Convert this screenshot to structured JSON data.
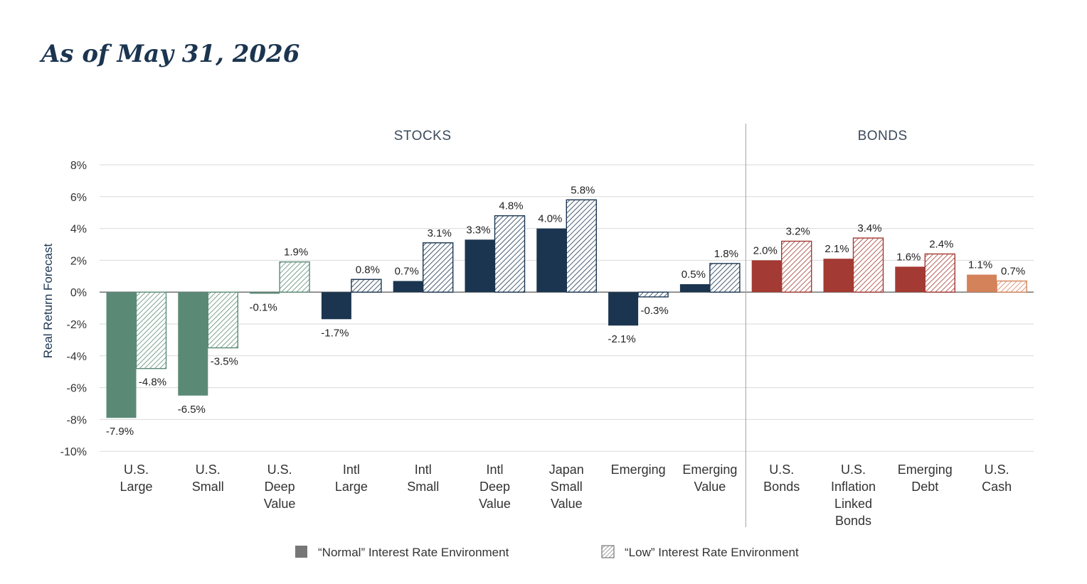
{
  "title": "As of May 31, 2026",
  "chart_data": {
    "type": "bar",
    "ylabel": "Real Return Forecast",
    "ylim": [
      -10,
      8
    ],
    "yticks": [
      8,
      6,
      4,
      2,
      0,
      -2,
      -4,
      -6,
      -8,
      -10
    ],
    "ytick_labels": [
      "8%",
      "6%",
      "4%",
      "2%",
      "0%",
      "-2%",
      "-4%",
      "-6%",
      "-8%",
      "-10%"
    ],
    "grid": true,
    "sections": [
      {
        "name": "STOCKS",
        "categories": [
          0,
          1,
          2,
          3,
          4,
          5,
          6,
          7,
          8
        ]
      },
      {
        "name": "BONDS",
        "categories": [
          9,
          10,
          11,
          12
        ]
      }
    ],
    "categories": [
      [
        "U.S.",
        "Large"
      ],
      [
        "U.S.",
        "Small"
      ],
      [
        "U.S.",
        "Deep",
        "Value"
      ],
      [
        "Intl",
        "Large"
      ],
      [
        "Intl",
        "Small"
      ],
      [
        "Intl",
        "Deep",
        "Value"
      ],
      [
        "Japan",
        "Small",
        "Value"
      ],
      [
        "Emerging"
      ],
      [
        "Emerging",
        "Value"
      ],
      [
        "U.S.",
        "Bonds"
      ],
      [
        "U.S.",
        "Inflation",
        "Linked",
        "Bonds"
      ],
      [
        "Emerging",
        "Debt"
      ],
      [
        "U.S.",
        "Cash"
      ]
    ],
    "category_colors": [
      "#5a8a76",
      "#5a8a76",
      "#5a8a76",
      "#1b3550",
      "#1b3550",
      "#1b3550",
      "#1b3550",
      "#1b3550",
      "#1b3550",
      "#a33a33",
      "#a33a33",
      "#a33a33",
      "#d4825a"
    ],
    "series": [
      {
        "name": "“Normal” Interest Rate Environment",
        "style": "solid",
        "values": [
          -7.9,
          -6.5,
          -0.1,
          -1.7,
          0.7,
          3.3,
          4.0,
          -2.1,
          0.5,
          2.0,
          2.1,
          1.6,
          1.1
        ],
        "labels": [
          "-7.9%",
          "-6.5%",
          "-0.1%",
          "-1.7%",
          "0.7%",
          "3.3%",
          "4.0%",
          "-2.1%",
          "0.5%",
          "2.0%",
          "2.1%",
          "1.6%",
          "1.1%"
        ]
      },
      {
        "name": "“Low” Interest Rate Environment",
        "style": "hatched",
        "values": [
          -4.8,
          -3.5,
          1.9,
          0.8,
          3.1,
          4.8,
          5.8,
          -0.3,
          1.8,
          3.2,
          3.4,
          2.4,
          0.7
        ],
        "labels": [
          "-4.8%",
          "-3.5%",
          "1.9%",
          "0.8%",
          "3.1%",
          "4.8%",
          "5.8%",
          "-0.3%",
          "1.8%",
          "3.2%",
          "3.4%",
          "2.4%",
          "0.7%"
        ]
      }
    ],
    "legend": {
      "placement": "bottom-center",
      "swatch_color": "#777777",
      "items": [
        "“Normal” Interest Rate Environment",
        "“Low” Interest Rate Environment"
      ]
    }
  }
}
